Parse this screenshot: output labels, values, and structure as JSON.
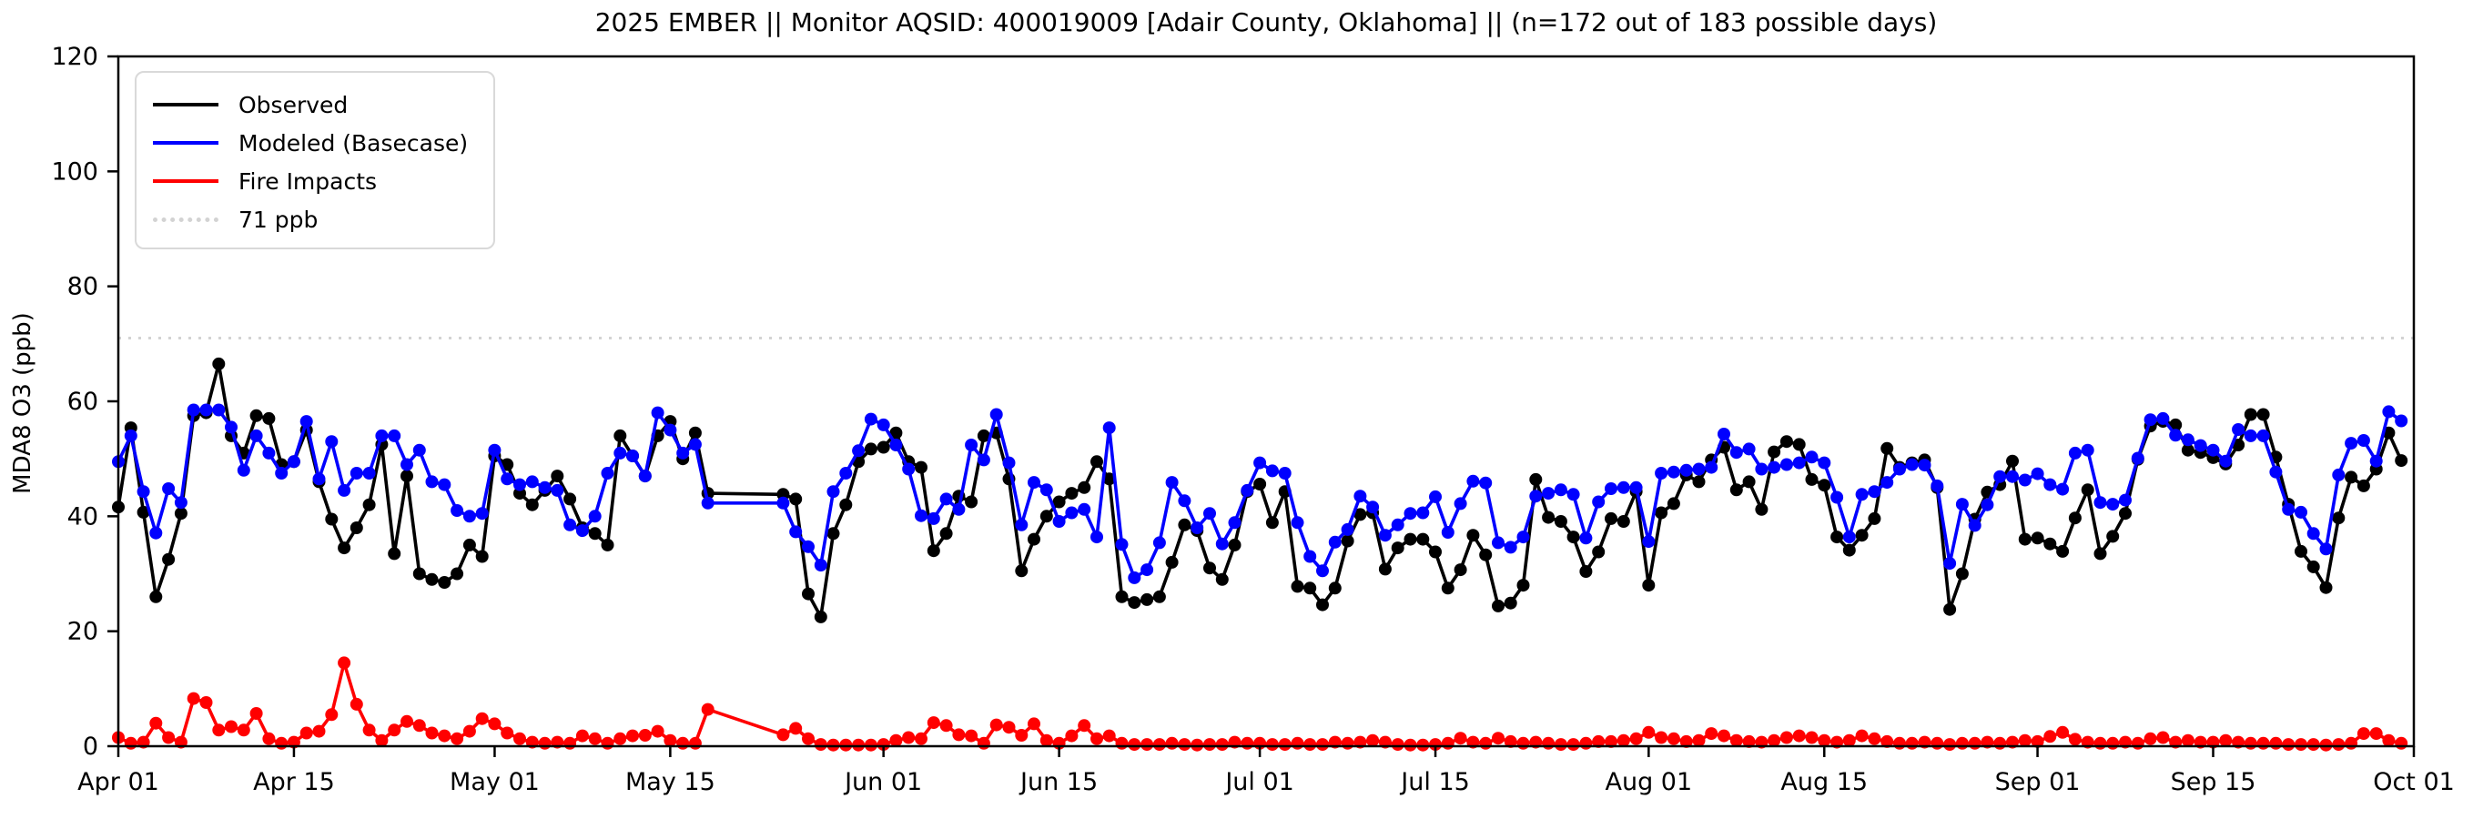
{
  "title": "2025 EMBER || Monitor AQSID: 400019009 [Adair County, Oklahoma] || (n=172 out of 183 possible days)",
  "legend": {
    "items": [
      {
        "label": "Observed",
        "color": "#000000",
        "style": "solid"
      },
      {
        "label": "Modeled (Basecase)",
        "color": "#0000ff",
        "style": "solid"
      },
      {
        "label": "Fire Impacts",
        "color": "#ff0000",
        "style": "solid"
      },
      {
        "label": "71 ppb",
        "color": "#d3d3d3",
        "style": "dotted"
      }
    ]
  },
  "chart_data": {
    "type": "line",
    "title": "2025 EMBER || Monitor AQSID: 400019009 [Adair County, Oklahoma] || (n=172 out of 183 possible days)",
    "xlabel": "",
    "ylabel": "MDA8 O3 (ppb)",
    "ylim": [
      0,
      120
    ],
    "yticks": [
      0,
      20,
      40,
      60,
      80,
      100,
      120
    ],
    "n_days": 183,
    "x_start": "Apr 01",
    "x_end": "Oct 01",
    "grid": false,
    "legend_position": "upper left",
    "threshold": {
      "label": "71 ppb",
      "value": 71,
      "color": "#d3d3d3",
      "style": "dotted"
    },
    "xticks": [
      {
        "label": "Apr 01",
        "day": 0
      },
      {
        "label": "Apr 15",
        "day": 14
      },
      {
        "label": "May 01",
        "day": 30
      },
      {
        "label": "May 15",
        "day": 44
      },
      {
        "label": "Jun 01",
        "day": 61
      },
      {
        "label": "Jun 15",
        "day": 75
      },
      {
        "label": "Jul 01",
        "day": 91
      },
      {
        "label": "Jul 15",
        "day": 105
      },
      {
        "label": "Aug 01",
        "day": 122
      },
      {
        "label": "Aug 15",
        "day": 136
      },
      {
        "label": "Sep 01",
        "day": 153
      },
      {
        "label": "Sep 15",
        "day": 167
      },
      {
        "label": "Oct 01",
        "day": 183
      }
    ],
    "series": [
      {
        "name": "Observed",
        "color": "#000000",
        "values": [
          41.6,
          55.4,
          40.7,
          26,
          32.5,
          40.5,
          57.5,
          58,
          66.5,
          54,
          51,
          57.5,
          57,
          49,
          49.5,
          55,
          46,
          39.5,
          34.5,
          38,
          42,
          52.5,
          33.5,
          47,
          30,
          29,
          28.5,
          30,
          35,
          33,
          50.5,
          49,
          44,
          42,
          44.5,
          47,
          43,
          38,
          37,
          35,
          54,
          50.5,
          47,
          54,
          56.5,
          50,
          54.5,
          44,
          null,
          null,
          null,
          null,
          null,
          43.8,
          43,
          26.5,
          22.5,
          37,
          42,
          49.5,
          51.7,
          52,
          54.5,
          49.5,
          48.5,
          34,
          37,
          43.5,
          42.5,
          54,
          54.5,
          46.5,
          30.5,
          36,
          40,
          42.5,
          44,
          45,
          49.5,
          46.5,
          26,
          25,
          25.5,
          26,
          32,
          38.5,
          37.5,
          31,
          29,
          35,
          44.3,
          45.6,
          38.9,
          44.3,
          27.8,
          27.5,
          24.6,
          27.5,
          35.7,
          40.3,
          40.6,
          30.8,
          34.5,
          36,
          36,
          33.8,
          27.5,
          30.7,
          36.7,
          33.3,
          24.4,
          24.9,
          28,
          46.4,
          39.8,
          39.1,
          36.4,
          30.4,
          33.8,
          39.6,
          39.1,
          44.3,
          28,
          40.6,
          42.2,
          47.2,
          46,
          49.8,
          52,
          44.6,
          46,
          41.2,
          51.2,
          53,
          52.5,
          46.4,
          45.4,
          36.4,
          34.1,
          36.7,
          39.6,
          51.8,
          48.5,
          49.3,
          49.8,
          45,
          23.8,
          30,
          39.5,
          44.2,
          45.5,
          49.6,
          36,
          36.2,
          35.2,
          33.9,
          39.7,
          44.6,
          33.5,
          36.5,
          40.5,
          49.9,
          55.7,
          56.5,
          55.9,
          51.5,
          51.1,
          50.2,
          49.1,
          52.4,
          57.7,
          57.7,
          50.3,
          42.1,
          33.9,
          31.2,
          27.6,
          39.7,
          46.8,
          45.3,
          48.2,
          54.5,
          49.7
        ]
      },
      {
        "name": "Modeled (Basecase)",
        "color": "#0000ff",
        "values": [
          49.5,
          54,
          44.3,
          37.1,
          44.8,
          42.4,
          58.5,
          58.5,
          58.5,
          55.5,
          48,
          54,
          51,
          47.5,
          49.5,
          56.5,
          46.5,
          53,
          44.5,
          47.5,
          47.5,
          54,
          54,
          49,
          51.5,
          46,
          45.5,
          41,
          40,
          40.5,
          51.5,
          46.5,
          45.5,
          46,
          45,
          44.5,
          38.5,
          37.5,
          40,
          47.5,
          51,
          50.5,
          47,
          58,
          55,
          51,
          52.5,
          42.3,
          null,
          null,
          null,
          null,
          null,
          42.3,
          37.3,
          34.7,
          31.5,
          44.3,
          47.5,
          51.4,
          56.9,
          55.9,
          52.4,
          48.2,
          40.1,
          39.6,
          43,
          41.2,
          52.4,
          49.8,
          57.7,
          49.3,
          38.5,
          45.9,
          44.6,
          39.1,
          40.6,
          41.2,
          36.4,
          55.4,
          35.1,
          29.3,
          30.7,
          35.4,
          45.9,
          42.7,
          38,
          40.5,
          35.2,
          38.9,
          44.5,
          49.3,
          47.9,
          47.5,
          38.9,
          33,
          30.5,
          35.5,
          37.7,
          43.5,
          41.6,
          36.7,
          38.5,
          40.5,
          40.6,
          43.4,
          37.2,
          42.2,
          46.1,
          45.8,
          35.4,
          34.6,
          36.4,
          43.5,
          44,
          44.6,
          43.8,
          36.2,
          42.5,
          44.8,
          45,
          45,
          35.6,
          47.5,
          47.7,
          48,
          48.2,
          48.5,
          54.3,
          51.1,
          51.7,
          48.2,
          48.5,
          49,
          49.3,
          50.3,
          49.3,
          43.3,
          36.4,
          43.8,
          44.3,
          45.9,
          48.2,
          49,
          48.9,
          45.3,
          31.8,
          42.1,
          38.4,
          42,
          46.9,
          46.9,
          46.3,
          47.4,
          45.5,
          44.7,
          51,
          51.5,
          42.4,
          42.1,
          42.8,
          50.1,
          56.8,
          57,
          54.1,
          53.3,
          52.3,
          51.5,
          49.6,
          55.1,
          54,
          54,
          47.7,
          41.2,
          40.7,
          37,
          34.3,
          47.2,
          52.7,
          53.2,
          49.6,
          58.2,
          56.6
        ]
      },
      {
        "name": "Fire Impacts",
        "color": "#ff0000",
        "values": [
          1.5,
          0.5,
          0.7,
          4,
          1.5,
          0.7,
          8.3,
          7.6,
          2.8,
          3.4,
          2.8,
          5.7,
          1.3,
          0.5,
          0.7,
          2.3,
          2.6,
          5.5,
          14.5,
          7.3,
          2.8,
          1,
          2.8,
          4.3,
          3.6,
          2.3,
          1.8,
          1.3,
          2.6,
          4.8,
          3.9,
          2.3,
          1.3,
          0.7,
          0.5,
          0.7,
          0.5,
          1.8,
          1.3,
          0.5,
          1.3,
          1.8,
          1.9,
          2.6,
          1,
          0.5,
          0.5,
          6.4,
          null,
          null,
          null,
          null,
          null,
          2,
          3.1,
          1.3,
          0.3,
          0.2,
          0.2,
          0.2,
          0.2,
          0.3,
          1,
          1.5,
          1.3,
          4.1,
          3.6,
          2,
          1.8,
          0.5,
          3.7,
          3.3,
          1.9,
          3.9,
          1,
          0.5,
          1.8,
          3.6,
          1.3,
          1.8,
          0.5,
          0.3,
          0.3,
          0.3,
          0.5,
          0.3,
          0.2,
          0.3,
          0.3,
          0.7,
          0.5,
          0.5,
          0.3,
          0.3,
          0.5,
          0.3,
          0.3,
          0.7,
          0.5,
          0.7,
          1,
          0.7,
          0.3,
          0.2,
          0.2,
          0.3,
          0.5,
          1.4,
          0.7,
          0.5,
          1.4,
          0.8,
          0.5,
          0.7,
          0.5,
          0.3,
          0.3,
          0.5,
          0.8,
          0.8,
          1,
          1.3,
          2.4,
          1.5,
          1.3,
          0.8,
          1,
          2.2,
          1.8,
          1,
          0.8,
          0.7,
          1,
          1.5,
          1.8,
          1.5,
          1,
          0.7,
          1,
          1.8,
          1.3,
          0.8,
          0.5,
          0.5,
          0.7,
          0.5,
          0.3,
          0.5,
          0.5,
          0.7,
          0.5,
          0.7,
          1,
          0.8,
          1.7,
          2.4,
          1.2,
          0.7,
          0.5,
          0.5,
          0.7,
          0.5,
          1.3,
          1.5,
          0.7,
          1,
          0.7,
          0.7,
          1,
          0.7,
          0.5,
          0.5,
          0.5,
          0.3,
          0.3,
          0.3,
          0.2,
          0.3,
          0.5,
          2.2,
          2.2,
          1,
          0.5
        ]
      }
    ]
  }
}
